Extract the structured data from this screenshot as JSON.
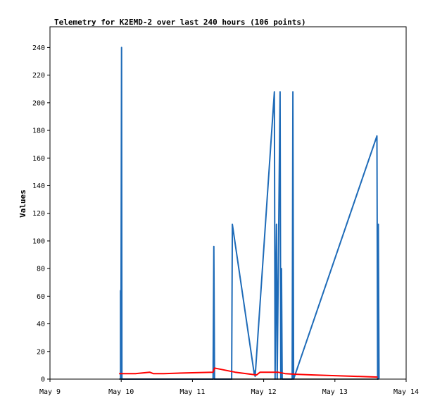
{
  "chart_data": {
    "type": "line",
    "title": "Telemetry for K2EMD-2 over last 240 hours (106 points)",
    "xlabel": "",
    "ylabel": "Values",
    "x_ticks": [
      "May 9",
      "May 10",
      "May 11",
      "May 12",
      "May 13",
      "May 14"
    ],
    "xlim": [
      0,
      5
    ],
    "ylim": [
      0,
      255
    ],
    "y_ticks": [
      0,
      20,
      40,
      60,
      80,
      100,
      120,
      140,
      160,
      180,
      200,
      220,
      240
    ],
    "grid": false,
    "series": [
      {
        "color": "#1e6bb8",
        "points": [
          [
            0.99,
            0
          ],
          [
            0.99,
            64
          ],
          [
            0.995,
            0
          ],
          [
            1.005,
            240
          ],
          [
            1.01,
            0
          ],
          [
            2.29,
            0
          ],
          [
            2.3,
            96
          ],
          [
            2.31,
            0
          ],
          [
            2.55,
            0
          ],
          [
            2.56,
            112
          ],
          [
            2.87,
            3
          ],
          [
            2.87,
            6
          ],
          [
            2.88,
            2
          ],
          [
            3.15,
            208
          ],
          [
            3.16,
            0
          ],
          [
            3.17,
            64
          ],
          [
            3.18,
            112
          ],
          [
            3.19,
            0
          ],
          [
            3.23,
            208
          ],
          [
            3.24,
            0
          ],
          [
            3.25,
            80
          ],
          [
            3.26,
            0
          ],
          [
            3.4,
            0
          ],
          [
            3.41,
            208
          ],
          [
            3.42,
            0
          ],
          [
            4.59,
            176
          ],
          [
            4.6,
            0
          ],
          [
            4.61,
            112
          ],
          [
            4.62,
            0
          ]
        ]
      },
      {
        "color": "#ff0000",
        "points": [
          [
            0.97,
            4
          ],
          [
            1.2,
            4
          ],
          [
            1.4,
            5
          ],
          [
            1.45,
            4
          ],
          [
            1.6,
            4
          ],
          [
            1.9,
            4.5
          ],
          [
            2.29,
            5
          ],
          [
            2.31,
            8
          ],
          [
            2.6,
            5
          ],
          [
            2.9,
            3
          ],
          [
            2.95,
            5
          ],
          [
            3.2,
            5
          ],
          [
            3.3,
            4
          ],
          [
            3.45,
            3.5
          ],
          [
            3.7,
            3
          ],
          [
            4.0,
            2.5
          ],
          [
            4.3,
            2
          ],
          [
            4.6,
            1.5
          ]
        ]
      },
      {
        "color": "#000000",
        "points": [
          [
            0.97,
            0
          ],
          [
            4.62,
            0
          ]
        ]
      }
    ]
  }
}
